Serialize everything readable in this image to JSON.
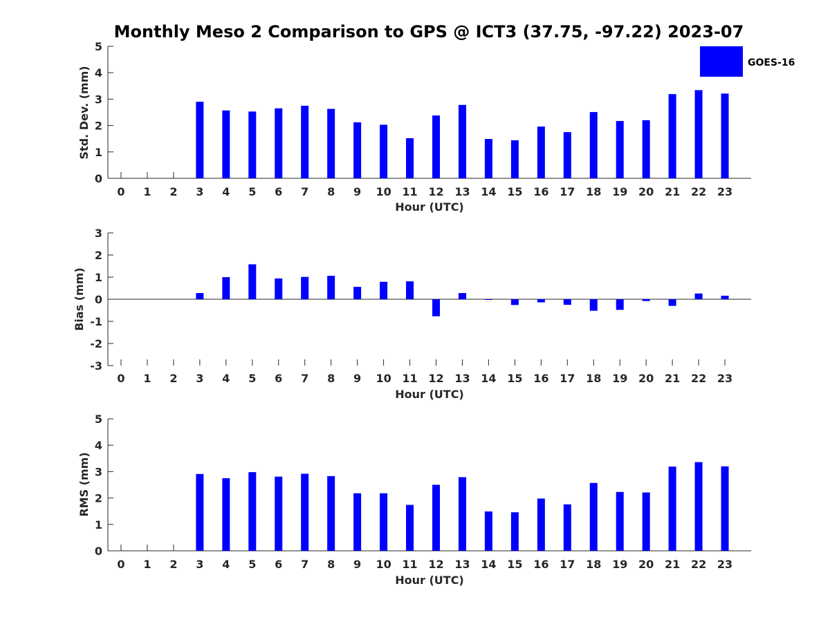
{
  "title": "Monthly Meso 2 Comparison to GPS @ ICT3 (37.75, -97.22) 2023-07",
  "legend": {
    "label": "GOES-16",
    "color": "#0000ff",
    "placement": "top-right"
  },
  "chart_data": [
    {
      "type": "bar",
      "name": "std-dev",
      "xlabel": "Hour (UTC)",
      "ylabel": "Std. Dev. (mm)",
      "ylim": [
        0,
        5
      ],
      "yticks": [
        0,
        1,
        2,
        3,
        4,
        5
      ],
      "categories": [
        "0",
        "1",
        "2",
        "3",
        "4",
        "5",
        "6",
        "7",
        "8",
        "9",
        "10",
        "11",
        "12",
        "13",
        "14",
        "15",
        "16",
        "17",
        "18",
        "19",
        "20",
        "21",
        "22",
        "23"
      ],
      "series": [
        {
          "name": "GOES-16",
          "color": "#0000ff",
          "values": [
            null,
            null,
            null,
            2.9,
            2.57,
            2.53,
            2.65,
            2.75,
            2.63,
            2.12,
            2.03,
            1.52,
            2.38,
            2.78,
            1.49,
            1.44,
            1.96,
            1.75,
            2.51,
            2.17,
            2.2,
            3.19,
            3.34,
            3.21
          ]
        }
      ],
      "grid": false
    },
    {
      "type": "bar",
      "name": "bias",
      "xlabel": "Hour (UTC)",
      "ylabel": "Bias (mm)",
      "ylim": [
        -3,
        3
      ],
      "yticks": [
        -3,
        -2,
        -1,
        0,
        1,
        2,
        3
      ],
      "categories": [
        "0",
        "1",
        "2",
        "3",
        "4",
        "5",
        "6",
        "7",
        "8",
        "9",
        "10",
        "11",
        "12",
        "13",
        "14",
        "15",
        "16",
        "17",
        "18",
        "19",
        "20",
        "21",
        "22",
        "23"
      ],
      "series": [
        {
          "name": "GOES-16",
          "color": "#0000ff",
          "values": [
            null,
            null,
            null,
            0.28,
            1.0,
            1.58,
            0.94,
            1.01,
            1.06,
            0.56,
            0.79,
            0.81,
            -0.77,
            0.28,
            -0.02,
            -0.26,
            -0.14,
            -0.25,
            -0.52,
            -0.48,
            -0.08,
            -0.3,
            0.26,
            0.16
          ]
        }
      ],
      "grid": false
    },
    {
      "type": "bar",
      "name": "rms",
      "xlabel": "Hour (UTC)",
      "ylabel": "RMS (mm)",
      "ylim": [
        0,
        5
      ],
      "yticks": [
        0,
        1,
        2,
        3,
        4,
        5
      ],
      "categories": [
        "0",
        "1",
        "2",
        "3",
        "4",
        "5",
        "6",
        "7",
        "8",
        "9",
        "10",
        "11",
        "12",
        "13",
        "14",
        "15",
        "16",
        "17",
        "18",
        "19",
        "20",
        "21",
        "22",
        "23"
      ],
      "series": [
        {
          "name": "GOES-16",
          "color": "#0000ff",
          "values": [
            null,
            null,
            null,
            2.91,
            2.75,
            2.98,
            2.81,
            2.92,
            2.83,
            2.18,
            2.18,
            1.74,
            2.5,
            2.79,
            1.49,
            1.46,
            1.98,
            1.76,
            2.57,
            2.23,
            2.21,
            3.19,
            3.36,
            3.2
          ]
        }
      ],
      "grid": false
    }
  ]
}
